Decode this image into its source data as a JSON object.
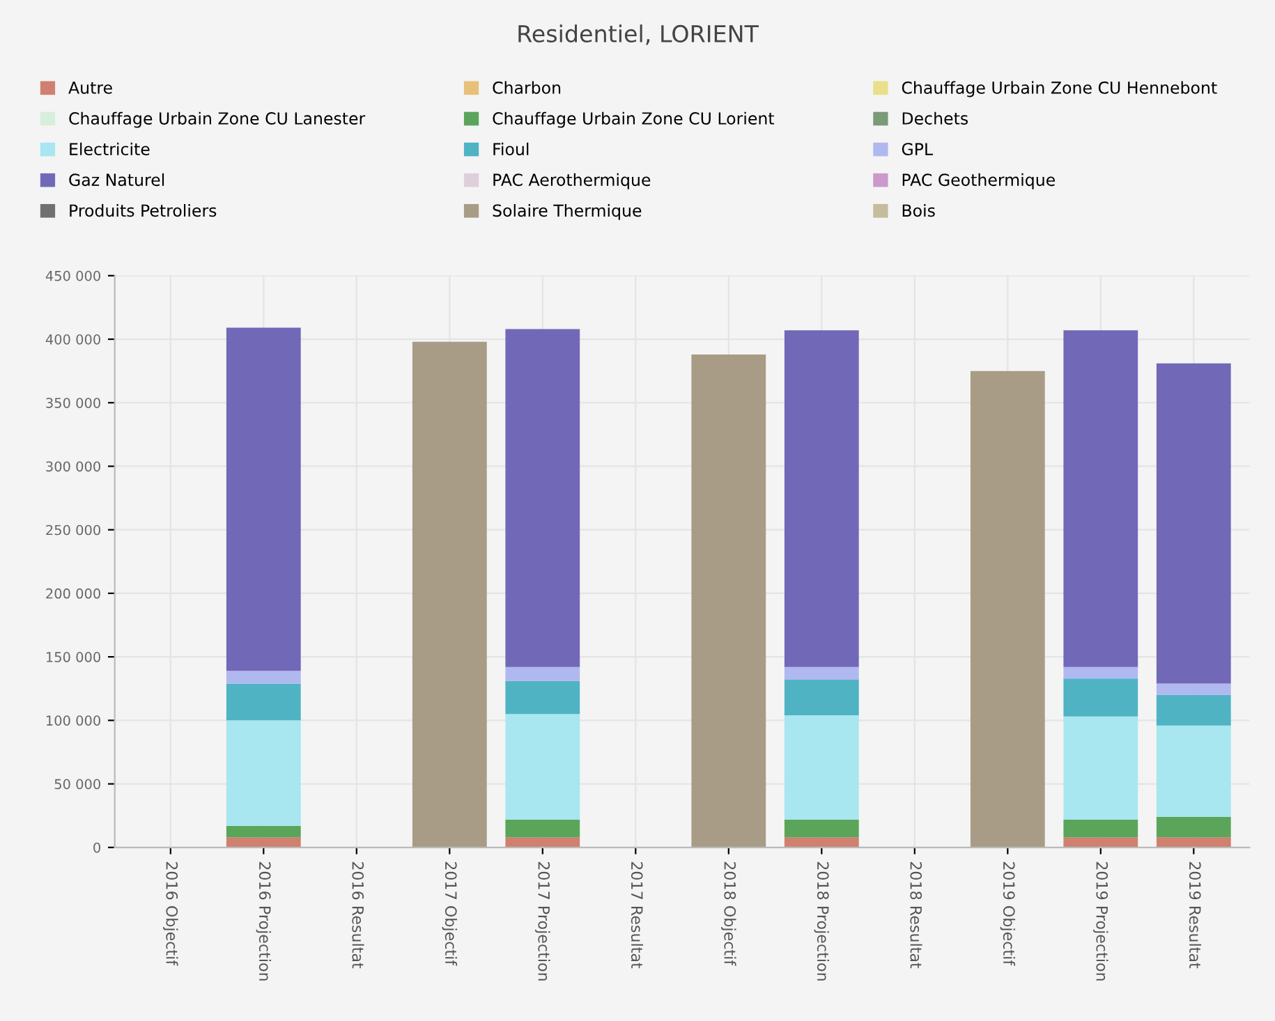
{
  "chart_data": {
    "type": "bar",
    "title": "Residentiel, LORIENT",
    "stacked": true,
    "categories": [
      "2016 Objectif",
      "2016 Projection",
      "2016 Resultat",
      "2017 Objectif",
      "2017 Projection",
      "2017 Resultat",
      "2018 Objectif",
      "2018 Projection",
      "2018 Resultat",
      "2019 Objectif",
      "2019 Projection",
      "2019 Resultat"
    ],
    "series": [
      {
        "name": "Autre",
        "color": "#d0806e",
        "values": [
          null,
          8000,
          null,
          null,
          8000,
          null,
          null,
          8000,
          null,
          null,
          8000,
          8000
        ]
      },
      {
        "name": "Charbon",
        "color": "#e8c07a",
        "values": [
          null,
          null,
          null,
          null,
          null,
          null,
          null,
          null,
          null,
          null,
          null,
          null
        ]
      },
      {
        "name": "Chauffage Urbain Zone CU Hennebont",
        "color": "#e8e08a",
        "values": [
          null,
          null,
          null,
          null,
          null,
          null,
          null,
          null,
          null,
          null,
          null,
          null
        ]
      },
      {
        "name": "Chauffage Urbain Zone CU Lanester",
        "color": "#d8eedc",
        "values": [
          null,
          null,
          null,
          null,
          null,
          null,
          null,
          null,
          null,
          null,
          null,
          null
        ]
      },
      {
        "name": "Chauffage Urbain Zone CU Lorient",
        "color": "#5aa55a",
        "values": [
          null,
          9000,
          null,
          null,
          14000,
          null,
          null,
          14000,
          null,
          null,
          14000,
          16000
        ]
      },
      {
        "name": "Dechets",
        "color": "#7a9a7a",
        "values": [
          null,
          null,
          null,
          null,
          null,
          null,
          null,
          null,
          null,
          null,
          null,
          null
        ]
      },
      {
        "name": "Electricite",
        "color": "#a8e6f0",
        "values": [
          null,
          83000,
          null,
          null,
          83000,
          null,
          null,
          82000,
          null,
          null,
          81000,
          72000
        ]
      },
      {
        "name": "Fioul",
        "color": "#4fb3c4",
        "values": [
          null,
          29000,
          null,
          null,
          26000,
          null,
          null,
          28000,
          null,
          null,
          30000,
          24000
        ]
      },
      {
        "name": "GPL",
        "color": "#b0b8f0",
        "values": [
          null,
          10000,
          null,
          null,
          11000,
          null,
          null,
          10000,
          null,
          null,
          9000,
          9000
        ]
      },
      {
        "name": "Gaz Naturel",
        "color": "#7268b8",
        "values": [
          null,
          270000,
          null,
          null,
          266000,
          null,
          null,
          265000,
          null,
          null,
          265000,
          252000
        ]
      },
      {
        "name": "PAC Aerothermique",
        "color": "#ddd0dc",
        "values": [
          null,
          null,
          null,
          null,
          null,
          null,
          null,
          null,
          null,
          null,
          null,
          null
        ]
      },
      {
        "name": "PAC Geothermique",
        "color": "#cc99cc",
        "values": [
          null,
          null,
          null,
          null,
          null,
          null,
          null,
          null,
          null,
          null,
          null,
          null
        ]
      },
      {
        "name": "Produits Petroliers",
        "color": "#707070",
        "values": [
          null,
          null,
          null,
          null,
          null,
          null,
          null,
          null,
          null,
          null,
          null,
          null
        ]
      },
      {
        "name": "Solaire Thermique",
        "color": "#a89c86",
        "values": [
          null,
          null,
          null,
          398000,
          null,
          null,
          388000,
          null,
          null,
          375000,
          null,
          null
        ]
      },
      {
        "name": "Bois",
        "color": "#c4bc9c",
        "values": [
          null,
          null,
          null,
          null,
          null,
          null,
          null,
          null,
          null,
          null,
          null,
          null
        ]
      }
    ],
    "ylim": [
      0,
      450000
    ],
    "yticks": [
      {
        "value": 0,
        "label": "0"
      },
      {
        "value": 50000,
        "label": "50 000"
      },
      {
        "value": 100000,
        "label": "100 000"
      },
      {
        "value": 150000,
        "label": "150 000"
      },
      {
        "value": 200000,
        "label": "200 000"
      },
      {
        "value": 250000,
        "label": "250 000"
      },
      {
        "value": 300000,
        "label": "300 000"
      },
      {
        "value": 350000,
        "label": "350 000"
      },
      {
        "value": 400000,
        "label": "400 000"
      },
      {
        "value": 450000,
        "label": "450 000"
      }
    ],
    "grid": true,
    "legend": "top"
  }
}
